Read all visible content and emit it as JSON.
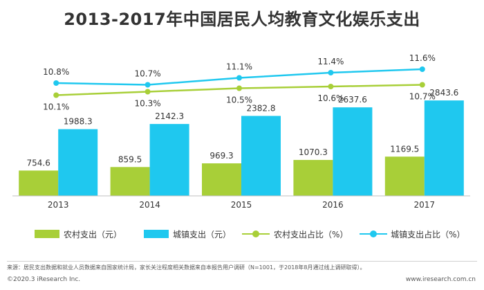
{
  "title": "2013-2017年中国居民人均教育文化娱乐支出",
  "chart_data": {
    "type": "bar",
    "categories": [
      "2013",
      "2014",
      "2015",
      "2016",
      "2017"
    ],
    "series": [
      {
        "name": "农村支出（元）",
        "kind": "bar",
        "color": "#A8CF38",
        "values": [
          754.6,
          859.5,
          969.3,
          1070.3,
          1169.5
        ],
        "labels": [
          "754.6",
          "859.5",
          "969.3",
          "1070.3",
          "1169.5"
        ]
      },
      {
        "name": "城镇支出（元）",
        "kind": "bar",
        "color": "#1FC8EF",
        "values": [
          1988.3,
          2142.3,
          2382.8,
          2637.6,
          2843.6
        ],
        "labels": [
          "1988.3",
          "2142.3",
          "2382.8",
          "2637.6",
          "2843.6"
        ]
      },
      {
        "name": "农村支出占比（%）",
        "kind": "line",
        "color": "#A8CF38",
        "values": [
          10.1,
          10.3,
          10.5,
          10.6,
          10.7
        ],
        "labels": [
          "10.1%",
          "10.3%",
          "10.5%",
          "10.6%",
          "10.7%"
        ]
      },
      {
        "name": "城镇支出占比（%）",
        "kind": "line",
        "color": "#1FC8EF",
        "values": [
          10.8,
          10.7,
          11.1,
          11.4,
          11.6
        ],
        "labels": [
          "10.8%",
          "10.7%",
          "11.1%",
          "11.4%",
          "11.6%"
        ]
      }
    ],
    "legend_position": "bottom",
    "grid": false
  },
  "footer": {
    "source": "来源：居民支出数据和就业人员数据来自国家统计局，家长关注程度相关数据来自本报告用户调研（N=1001，于2018年8月通过线上调研取得）。",
    "copyright": "©2020.3 iResearch Inc.",
    "website": "www.iresearch.com.cn"
  }
}
